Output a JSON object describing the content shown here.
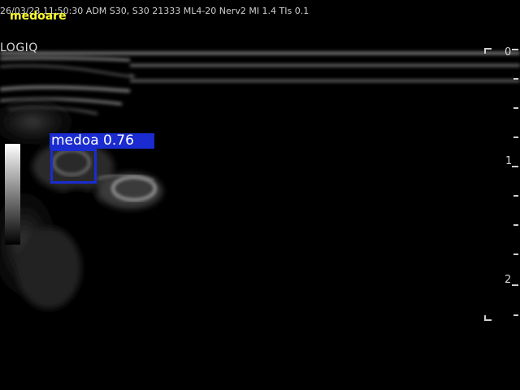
{
  "header": {
    "info_line": "26/03/23 11:50:30  ADM  S30, S30  21333   ML4-20  Nerv2  MI 1.4  TIs 0.1",
    "overlay_tag": "medoare",
    "brand": "LOGIQ"
  },
  "detection": {
    "label": "medoa  0.76",
    "color": "#1a2bd0"
  },
  "depth_scale": {
    "marks": [
      "0",
      "1",
      "2"
    ]
  },
  "colors": {
    "background": "#000000",
    "overlay_tag": "#ffff33"
  }
}
